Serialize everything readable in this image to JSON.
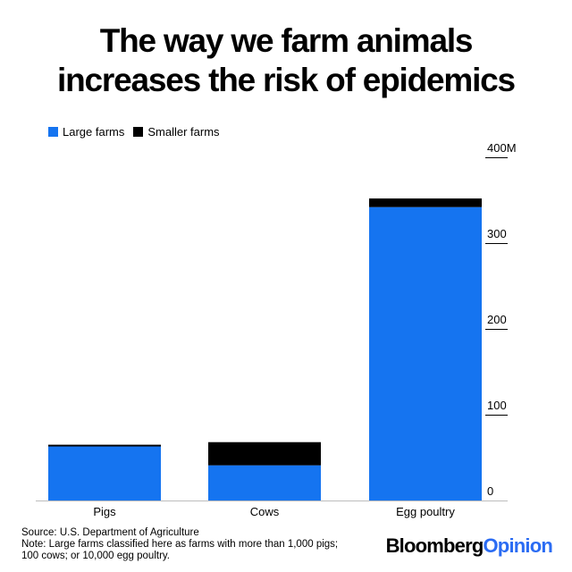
{
  "header": {
    "title_line1": "The way we farm animals",
    "title_line2": "increases the risk of epidemics"
  },
  "legend": [
    {
      "label": "Large farms",
      "color": "#1574f0"
    },
    {
      "label": "Smaller farms",
      "color": "#000000"
    }
  ],
  "chart_data": {
    "type": "bar",
    "stacked": true,
    "categories": [
      "Pigs",
      "Cows",
      "Egg poultry"
    ],
    "series": [
      {
        "name": "Large farms",
        "color": "#1574f0",
        "values": [
          63,
          41,
          342
        ]
      },
      {
        "name": "Smaller farms",
        "color": "#000000",
        "values": [
          2,
          27,
          10
        ]
      }
    ],
    "ylim": [
      0,
      400
    ],
    "yticks": [
      {
        "value": 0,
        "label": "0"
      },
      {
        "value": 100,
        "label": "100"
      },
      {
        "value": 200,
        "label": "200"
      },
      {
        "value": 300,
        "label": "300"
      },
      {
        "value": 400,
        "label": "400M"
      }
    ],
    "title": "",
    "xlabel": "",
    "ylabel": "",
    "legend_position": "top-left",
    "grid": false
  },
  "footer": {
    "source": "Source: U.S. Department of Agriculture",
    "note_line1": "Note:  Large farms classified here as farms with more than 1,000 pigs;",
    "note_line2": "100 cows; or 10,000 egg poultry."
  },
  "brand": {
    "part1": "Bloomberg",
    "part2": "Opinion",
    "color2": "#2b6cf3"
  }
}
